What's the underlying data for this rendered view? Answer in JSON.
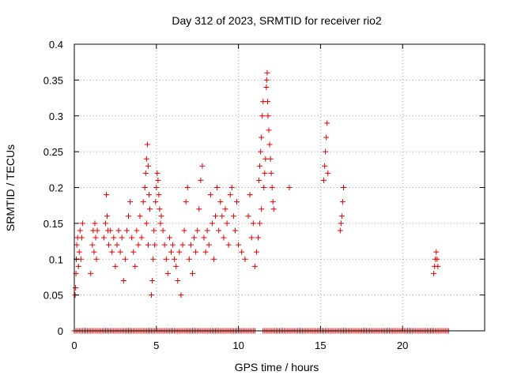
{
  "chart_data": {
    "type": "scatter",
    "title": "Day 312 of 2023, SRMTID for receiver rio2",
    "xlabel": "GPS time / hours",
    "ylabel": "SRMTID / TECUs",
    "xlim": [
      0,
      25
    ],
    "ylim": [
      0,
      0.4
    ],
    "x_ticks": [
      0,
      5,
      10,
      15,
      20
    ],
    "y_ticks": [
      0,
      0.05,
      0.1,
      0.15,
      0.2,
      0.25,
      0.3,
      0.35,
      0.4
    ],
    "x_tick_labels": [
      "0",
      "5",
      "10",
      "15",
      "20"
    ],
    "y_tick_labels": [
      "0",
      "0.05",
      "0.1",
      "0.15",
      "0.2",
      "0.25",
      "0.3",
      "0.35",
      "0.4"
    ],
    "grid": true,
    "marker": "plus",
    "color": "#e00000",
    "series": [
      {
        "points": [
          [
            0.05,
            0.05
          ],
          [
            0.08,
            0.06
          ],
          [
            0.1,
            0.08
          ],
          [
            0.12,
            0.1
          ],
          [
            0.15,
            0.12
          ],
          [
            0.2,
            0.13
          ],
          [
            0.25,
            0.09
          ],
          [
            0.3,
            0.11
          ],
          [
            0.35,
            0.14
          ],
          [
            0.4,
            0.1
          ],
          [
            0.45,
            0.13
          ],
          [
            0.5,
            0.15
          ],
          [
            1.0,
            0.08
          ],
          [
            1.1,
            0.12
          ],
          [
            1.15,
            0.14
          ],
          [
            1.2,
            0.11
          ],
          [
            1.25,
            0.15
          ],
          [
            1.3,
            0.13
          ],
          [
            1.35,
            0.1
          ],
          [
            1.4,
            0.14
          ],
          [
            1.8,
            0.13
          ],
          [
            1.9,
            0.15
          ],
          [
            1.95,
            0.19
          ],
          [
            2.0,
            0.16
          ],
          [
            2.05,
            0.14
          ],
          [
            2.1,
            0.12
          ],
          [
            2.2,
            0.14
          ],
          [
            2.3,
            0.11
          ],
          [
            2.4,
            0.13
          ],
          [
            2.5,
            0.09
          ],
          [
            2.6,
            0.12
          ],
          [
            2.7,
            0.14
          ],
          [
            2.8,
            0.11
          ],
          [
            2.9,
            0.13
          ],
          [
            3.0,
            0.07
          ],
          [
            3.1,
            0.1
          ],
          [
            3.2,
            0.14
          ],
          [
            3.3,
            0.16
          ],
          [
            3.4,
            0.18
          ],
          [
            3.5,
            0.13
          ],
          [
            3.6,
            0.11
          ],
          [
            3.7,
            0.09
          ],
          [
            3.8,
            0.14
          ],
          [
            3.9,
            0.12
          ],
          [
            4.0,
            0.16
          ],
          [
            4.1,
            0.13
          ],
          [
            4.2,
            0.18
          ],
          [
            4.3,
            0.2
          ],
          [
            4.4,
            0.15
          ],
          [
            4.5,
            0.12
          ],
          [
            4.35,
            0.22
          ],
          [
            4.4,
            0.24
          ],
          [
            4.45,
            0.26
          ],
          [
            4.5,
            0.23
          ],
          [
            4.55,
            0.19
          ],
          [
            4.6,
            0.17
          ],
          [
            4.7,
            0.05
          ],
          [
            4.75,
            0.07
          ],
          [
            4.8,
            0.1
          ],
          [
            4.85,
            0.14
          ],
          [
            4.9,
            0.12
          ],
          [
            4.95,
            0.18
          ],
          [
            5.0,
            0.2
          ],
          [
            5.05,
            0.22
          ],
          [
            5.1,
            0.21
          ],
          [
            5.15,
            0.19
          ],
          [
            5.2,
            0.17
          ],
          [
            5.25,
            0.15
          ],
          [
            5.3,
            0.16
          ],
          [
            5.4,
            0.14
          ],
          [
            5.5,
            0.12
          ],
          [
            5.6,
            0.1
          ],
          [
            5.7,
            0.08
          ],
          [
            5.8,
            0.13
          ],
          [
            5.9,
            0.11
          ],
          [
            6.0,
            0.12
          ],
          [
            6.1,
            0.1
          ],
          [
            6.2,
            0.09
          ],
          [
            6.3,
            0.07
          ],
          [
            6.4,
            0.11
          ],
          [
            6.5,
            0.05
          ],
          [
            6.6,
            0.12
          ],
          [
            6.7,
            0.14
          ],
          [
            6.8,
            0.18
          ],
          [
            6.9,
            0.2
          ],
          [
            7.0,
            0.1
          ],
          [
            7.1,
            0.12
          ],
          [
            7.2,
            0.08
          ],
          [
            7.3,
            0.13
          ],
          [
            7.4,
            0.11
          ],
          [
            7.5,
            0.14
          ],
          [
            7.6,
            0.17
          ],
          [
            7.7,
            0.21
          ],
          [
            7.8,
            0.23
          ],
          [
            7.9,
            0.13
          ],
          [
            8.0,
            0.11
          ],
          [
            8.1,
            0.14
          ],
          [
            8.2,
            0.12
          ],
          [
            8.3,
            0.19
          ],
          [
            8.4,
            0.15
          ],
          [
            8.5,
            0.1
          ],
          [
            8.6,
            0.16
          ],
          [
            8.7,
            0.2
          ],
          [
            8.8,
            0.14
          ],
          [
            8.9,
            0.18
          ],
          [
            9.0,
            0.16
          ],
          [
            9.1,
            0.13
          ],
          [
            9.2,
            0.17
          ],
          [
            9.3,
            0.15
          ],
          [
            9.4,
            0.12
          ],
          [
            9.5,
            0.19
          ],
          [
            9.6,
            0.2
          ],
          [
            9.7,
            0.16
          ],
          [
            9.8,
            0.14
          ],
          [
            9.9,
            0.18
          ],
          [
            10.0,
            0.12
          ],
          [
            10.2,
            0.11
          ],
          [
            10.4,
            0.1
          ],
          [
            10.6,
            0.16
          ],
          [
            10.7,
            0.19
          ],
          [
            10.8,
            0.13
          ],
          [
            10.9,
            0.15
          ],
          [
            11.0,
            0.09
          ],
          [
            11.1,
            0.11
          ],
          [
            11.2,
            0.13
          ],
          [
            11.3,
            0.15
          ],
          [
            11.4,
            0.17
          ],
          [
            11.25,
            0.21
          ],
          [
            11.3,
            0.23
          ],
          [
            11.35,
            0.25
          ],
          [
            11.4,
            0.27
          ],
          [
            11.45,
            0.3
          ],
          [
            11.5,
            0.32
          ],
          [
            11.55,
            0.2
          ],
          [
            11.6,
            0.22
          ],
          [
            11.65,
            0.24
          ],
          [
            11.7,
            0.34
          ],
          [
            11.72,
            0.35
          ],
          [
            11.75,
            0.36
          ],
          [
            11.78,
            0.32
          ],
          [
            11.8,
            0.3
          ],
          [
            11.85,
            0.28
          ],
          [
            11.9,
            0.26
          ],
          [
            11.95,
            0.24
          ],
          [
            12.0,
            0.22
          ],
          [
            12.05,
            0.2
          ],
          [
            12.1,
            0.18
          ],
          [
            12.15,
            0.17
          ],
          [
            13.1,
            0.2
          ],
          [
            15.2,
            0.21
          ],
          [
            15.25,
            0.23
          ],
          [
            15.3,
            0.25
          ],
          [
            15.35,
            0.27
          ],
          [
            15.4,
            0.29
          ],
          [
            15.45,
            0.22
          ],
          [
            16.2,
            0.14
          ],
          [
            16.25,
            0.15
          ],
          [
            16.3,
            0.16
          ],
          [
            16.35,
            0.18
          ],
          [
            16.4,
            0.2
          ],
          [
            21.9,
            0.08
          ],
          [
            21.95,
            0.09
          ],
          [
            22.0,
            0.1
          ],
          [
            22.05,
            0.11
          ],
          [
            22.1,
            0.1
          ],
          [
            22.15,
            0.09
          ]
        ]
      }
    ],
    "zero_baseline_ranges": [
      [
        0.0,
        11.0
      ],
      [
        11.5,
        22.8
      ]
    ]
  }
}
